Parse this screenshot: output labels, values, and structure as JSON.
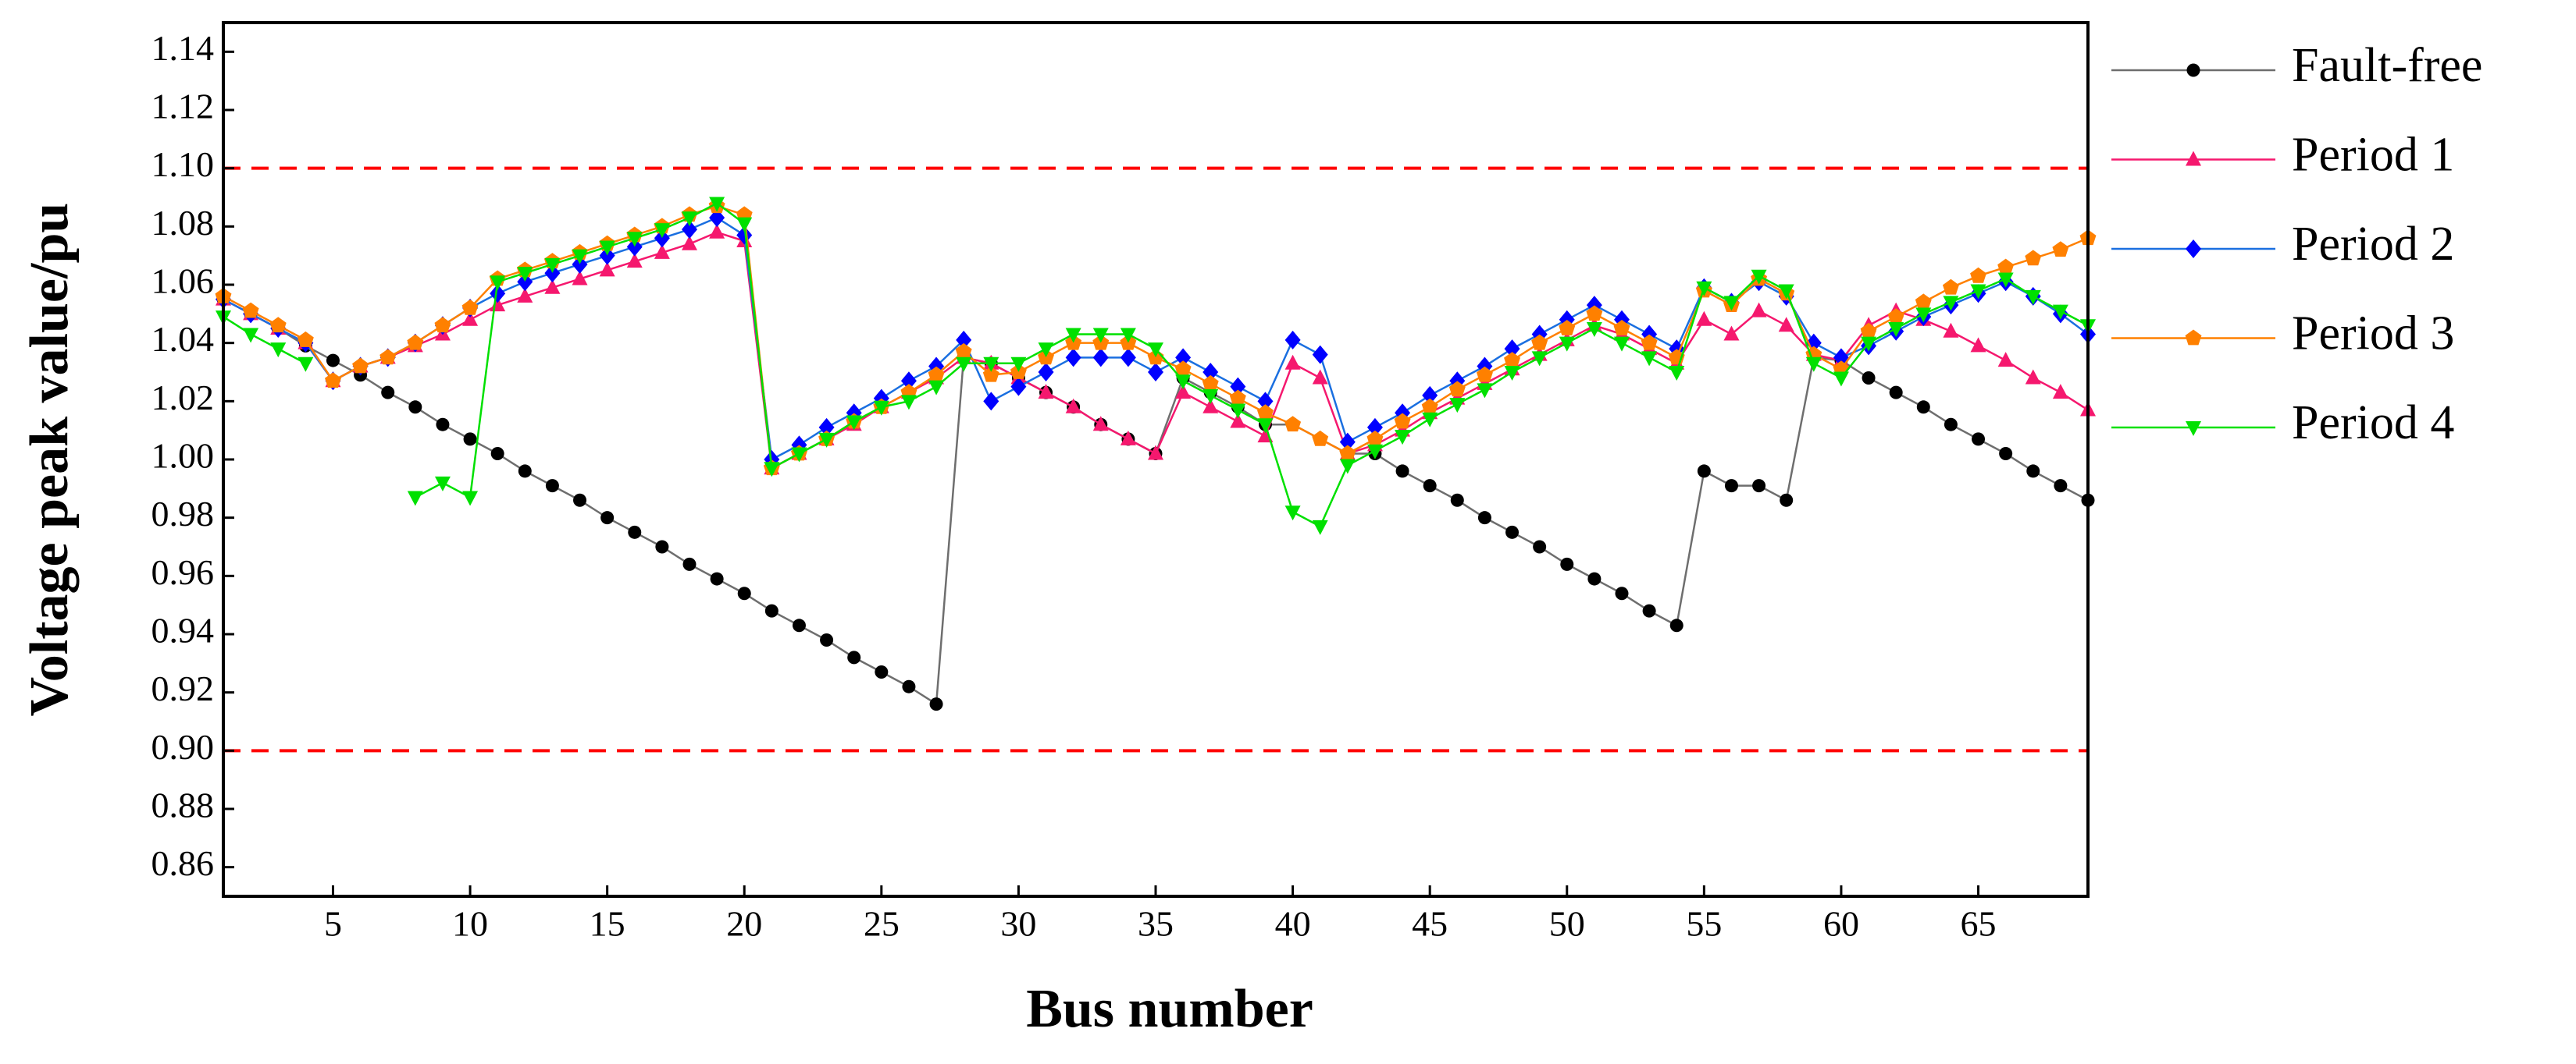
{
  "chart_data": {
    "type": "line",
    "xlabel": "Bus number",
    "ylabel": "Voltage peak value/pu",
    "x": [
      1,
      2,
      3,
      4,
      5,
      6,
      7,
      8,
      9,
      10,
      11,
      12,
      13,
      14,
      15,
      16,
      17,
      18,
      19,
      20,
      21,
      22,
      23,
      24,
      25,
      26,
      27,
      28,
      29,
      30,
      31,
      32,
      33,
      34,
      35,
      36,
      37,
      38,
      39,
      40,
      41,
      42,
      43,
      44,
      45,
      46,
      47,
      48,
      49,
      50,
      51,
      52,
      53,
      54,
      55,
      56,
      57,
      58,
      59,
      60,
      61,
      62,
      63,
      64,
      65,
      66,
      67,
      68,
      69
    ],
    "xlim": [
      1,
      69
    ],
    "xticks": [
      5,
      10,
      15,
      20,
      25,
      30,
      35,
      40,
      45,
      50,
      55,
      60,
      65
    ],
    "ylim": [
      0.85,
      1.15
    ],
    "yticks": [
      0.86,
      0.88,
      {
        "value": 0.9,
        "label": "0.90"
      },
      0.92,
      0.94,
      0.96,
      0.98,
      {
        "value": 1,
        "label": "1.00"
      },
      1.02,
      1.04,
      1.06,
      1.08,
      {
        "value": 1.1,
        "label": "1.10"
      },
      1.12,
      1.14
    ],
    "reference_lines": [
      {
        "value": 1.1,
        "color": "#ff0000"
      },
      {
        "value": 0.9,
        "color": "#ff0000"
      }
    ],
    "legend": "outside-right",
    "series": [
      {
        "name": "Fault-free",
        "color": "#000000",
        "line_color": "#6e6e6e",
        "marker": "circle",
        "values": [
          1.055,
          1.05,
          1.045,
          1.039,
          1.034,
          1.029,
          1.023,
          1.018,
          1.012,
          1.007,
          1.002,
          0.996,
          0.991,
          0.986,
          0.98,
          0.975,
          0.97,
          0.964,
          0.959,
          0.954,
          0.948,
          0.943,
          0.938,
          0.932,
          0.927,
          0.922,
          0.916,
          1.035,
          1.033,
          1.028,
          1.023,
          1.018,
          1.012,
          1.007,
          1.002,
          1.028,
          1.023,
          1.018,
          1.012,
          1.012,
          1.007,
          1.002,
          1.002,
          0.996,
          0.991,
          0.986,
          0.98,
          0.975,
          0.97,
          0.964,
          0.959,
          0.954,
          0.948,
          0.943,
          0.996,
          0.991,
          0.991,
          0.986,
          1.035,
          1.034,
          1.028,
          1.023,
          1.018,
          1.012,
          1.007,
          1.002,
          0.996,
          0.991,
          0.986
        ]
      },
      {
        "name": "Period 1",
        "color": "#f5186e",
        "line_color": "#f5186e",
        "marker": "triangle-up",
        "values": [
          1.055,
          1.05,
          1.045,
          1.04,
          1.027,
          1.032,
          1.035,
          1.039,
          1.043,
          1.048,
          1.053,
          1.056,
          1.059,
          1.062,
          1.065,
          1.068,
          1.071,
          1.074,
          1.078,
          1.075,
          0.997,
          1.002,
          1.007,
          1.012,
          1.018,
          1.023,
          1.028,
          1.035,
          1.033,
          1.028,
          1.023,
          1.018,
          1.012,
          1.007,
          1.002,
          1.023,
          1.018,
          1.013,
          1.008,
          1.033,
          1.028,
          1.002,
          1.005,
          1.01,
          1.016,
          1.021,
          1.026,
          1.031,
          1.036,
          1.041,
          1.046,
          1.043,
          1.038,
          1.033,
          1.048,
          1.043,
          1.051,
          1.046,
          1.036,
          1.034,
          1.046,
          1.051,
          1.048,
          1.044,
          1.039,
          1.034,
          1.028,
          1.023,
          1.017
        ]
      },
      {
        "name": "Period 2",
        "color": "#0000ff",
        "line_color": "#1a6fe0",
        "marker": "diamond",
        "values": [
          1.055,
          1.05,
          1.045,
          1.04,
          1.027,
          1.032,
          1.035,
          1.04,
          1.046,
          1.052,
          1.057,
          1.061,
          1.064,
          1.067,
          1.07,
          1.073,
          1.076,
          1.079,
          1.083,
          1.077,
          1.0,
          1.005,
          1.011,
          1.016,
          1.021,
          1.027,
          1.032,
          1.041,
          1.02,
          1.025,
          1.03,
          1.035,
          1.035,
          1.035,
          1.03,
          1.035,
          1.03,
          1.025,
          1.02,
          1.041,
          1.036,
          1.006,
          1.011,
          1.016,
          1.022,
          1.027,
          1.032,
          1.038,
          1.043,
          1.048,
          1.053,
          1.048,
          1.043,
          1.038,
          1.059,
          1.054,
          1.061,
          1.056,
          1.04,
          1.035,
          1.039,
          1.044,
          1.049,
          1.053,
          1.057,
          1.061,
          1.056,
          1.05,
          1.043
        ]
      },
      {
        "name": "Period 3",
        "color": "#ff8000",
        "line_color": "#ff8000",
        "marker": "pentagon",
        "values": [
          1.056,
          1.051,
          1.046,
          1.041,
          1.027,
          1.032,
          1.035,
          1.04,
          1.046,
          1.052,
          1.062,
          1.065,
          1.068,
          1.071,
          1.074,
          1.077,
          1.08,
          1.084,
          1.087,
          1.084,
          0.997,
          1.002,
          1.007,
          1.013,
          1.018,
          1.023,
          1.029,
          1.037,
          1.029,
          1.03,
          1.035,
          1.04,
          1.04,
          1.04,
          1.035,
          1.031,
          1.026,
          1.021,
          1.016,
          1.012,
          1.007,
          1.002,
          1.007,
          1.013,
          1.018,
          1.024,
          1.029,
          1.034,
          1.04,
          1.045,
          1.05,
          1.045,
          1.04,
          1.035,
          1.058,
          1.053,
          1.062,
          1.057,
          1.036,
          1.031,
          1.044,
          1.049,
          1.054,
          1.059,
          1.063,
          1.066,
          1.069,
          1.072,
          1.076
        ]
      },
      {
        "name": "Period 4",
        "color": "#00e000",
        "line_color": "#00e000",
        "marker": "triangle-down",
        "values": [
          1.049,
          1.043,
          1.038,
          1.033,
          null,
          null,
          null,
          0.987,
          0.992,
          0.987,
          1.061,
          1.064,
          1.067,
          1.07,
          1.073,
          1.076,
          1.079,
          1.083,
          1.088,
          1.081,
          0.997,
          1.002,
          1.007,
          1.013,
          1.018,
          1.02,
          1.025,
          1.033,
          1.033,
          1.033,
          1.038,
          1.043,
          1.043,
          1.043,
          1.038,
          1.027,
          1.022,
          1.017,
          1.012,
          0.982,
          0.977,
          0.998,
          1.003,
          1.008,
          1.014,
          1.019,
          1.024,
          1.03,
          1.035,
          1.04,
          1.045,
          1.04,
          1.035,
          1.03,
          1.059,
          1.054,
          1.063,
          1.058,
          1.033,
          1.028,
          1.04,
          1.045,
          1.05,
          1.054,
          1.058,
          1.062,
          1.056,
          1.051,
          1.046
        ]
      }
    ]
  }
}
